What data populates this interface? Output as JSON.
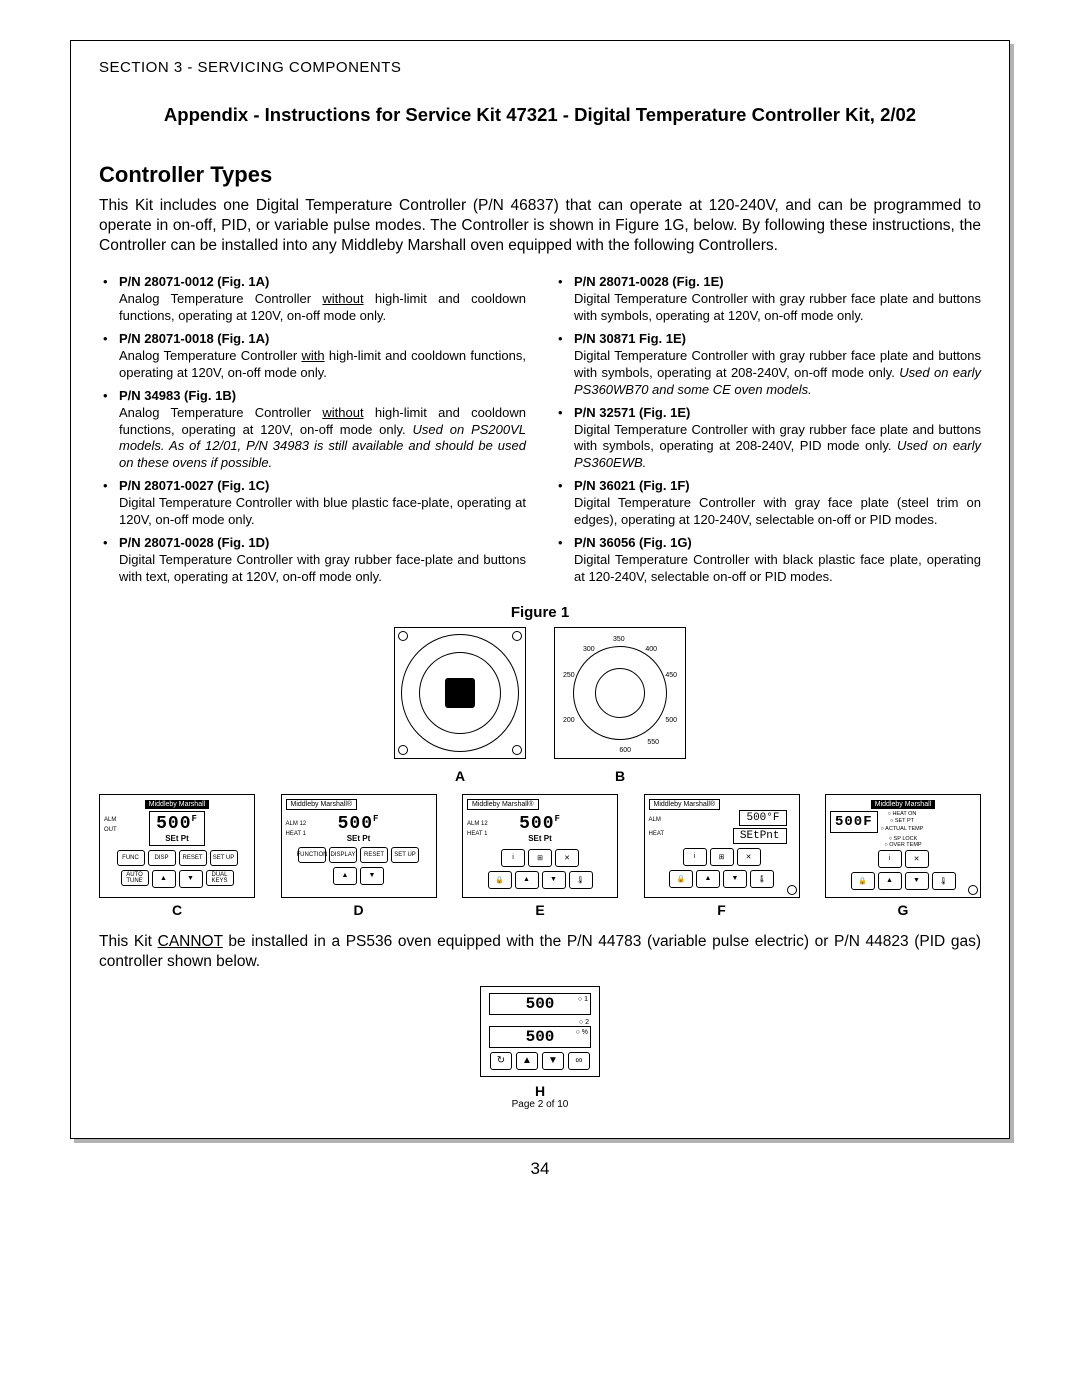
{
  "section_header": "SECTION 3 - SERVICING COMPONENTS",
  "appendix_title": "Appendix - Instructions for Service Kit 47321 - Digital Temperature Controller Kit, 2/02",
  "heading": "Controller Types",
  "intro": "This Kit includes one Digital Temperature Controller (P/N 46837) that can operate at 120-240V, and can be programmed to operate in on-off, PID, or variable pulse modes.  The Controller is shown in Figure 1G, below.  By following these instructions, the Controller can be installed into any Middleby Marshall oven equipped with the following Controllers.",
  "bullet": "•",
  "left_items": [
    {
      "title": "P/N 28071-0012 (Fig. 1A)",
      "pre": "Analog Temperature Controller ",
      "u": "without",
      "post": " high-limit and cooldown functions, operating at 120V, on-off mode only."
    },
    {
      "title": "P/N 28071-0018 (Fig. 1A)",
      "pre": "Analog Temperature Controller ",
      "u": "with",
      "post": " high-limit and cooldown functions, operating at 120V, on-off mode only."
    },
    {
      "title": "P/N 34983 (Fig. 1B)",
      "pre": "Analog Temperature Controller ",
      "u": "without",
      "post": " high-limit and cooldown functions, operating at 120V, on-off mode only. ",
      "italic": "Used on PS200VL models.  As of 12/01, P/N 34983 is still available and should be used on these ovens if possible."
    },
    {
      "title": "P/N 28071-0027 (Fig. 1C)",
      "pre": "Digital Temperature Controller with blue plastic face-plate, operating at 120V, on-off mode only.",
      "u": "",
      "post": ""
    },
    {
      "title": "P/N 28071-0028 (Fig. 1D)",
      "pre": "Digital Temperature Controller with gray rubber face-plate and buttons with text, operating at 120V, on-off mode only.",
      "u": "",
      "post": ""
    }
  ],
  "right_items": [
    {
      "title": "P/N 28071-0028 (Fig. 1E)",
      "pre": "Digital Temperature Controller with gray rubber face plate and buttons with symbols, operating at 120V, on-off mode only.",
      "u": "",
      "post": ""
    },
    {
      "title": "P/N 30871 Fig. 1E)",
      "pre": "Digital Temperature Controller with gray rubber face plate and buttons with symbols, operating at 208-240V, on-off mode only.  ",
      "u": "",
      "post": "",
      "italic": "Used on early PS360WB70 and some CE oven models."
    },
    {
      "title": "P/N 32571 (Fig. 1E)",
      "pre": "Digital Temperature Controller with gray rubber face plate and buttons with symbols, operating at 208-240V, PID mode only. ",
      "u": "",
      "post": "",
      "italic": "Used on early PS360EWB."
    },
    {
      "title": "P/N 36021 (Fig. 1F)",
      "pre": "Digital Temperature Controller with gray face plate (steel trim on edges), operating at 120-240V, selectable on-off or PID modes.",
      "u": "",
      "post": ""
    },
    {
      "title": "P/N 36056 (Fig. 1G)",
      "pre": "Digital Temperature Controller with black plastic face plate, operating at 120-240V, selectable on-off or PID modes.",
      "u": "",
      "post": ""
    }
  ],
  "figure_label": "Figure 1",
  "fig": {
    "A": "A",
    "B": "B",
    "C": "C",
    "D": "D",
    "E": "E",
    "F": "F",
    "G": "G",
    "H": "H",
    "brand": "Middleby Marshall",
    "brand_short": "Middleby Marshall®",
    "temp": "500",
    "unit": "F",
    "setpt": "SEt Pt",
    "setpnt": "SEtPnt",
    "alm12": "ALM 12",
    "heat1": "HEAT 1",
    "alm": "ALM",
    "out": "OUT",
    "heat": "HEAT",
    "func": "FUNC",
    "disp": "DISP",
    "reset": "RESET",
    "setup": "SET UP",
    "autotune": "AUTO TUNE",
    "dualkeys": "DUAL KEYS",
    "function": "FUNCTION",
    "display": "DISPLAY",
    "heaton": "HEAT ON",
    "setptlbl": "SET PT",
    "actualtemp": "ACTUAL TEMP",
    "splock": "SP LOCK",
    "overtemp": "OVER TEMP",
    "dialB_vals": [
      "200",
      "250",
      "300",
      "350",
      "400",
      "450",
      "500",
      "550",
      "600"
    ],
    "ind1": "1",
    "ind2": "2",
    "indpct": "%"
  },
  "note_pre": "This Kit ",
  "note_u": "CANNOT",
  "note_post": " be installed in a PS536 oven equipped with the P/N 44783 (variable pulse electric) or P/N 44823 (PID gas) controller shown below.",
  "footer_page": "Page 2 of 10",
  "page_number": "34",
  "colors": {
    "text": "#000000",
    "bg": "#ffffff",
    "shadow": "rgba(0,0,0,0.3)"
  }
}
